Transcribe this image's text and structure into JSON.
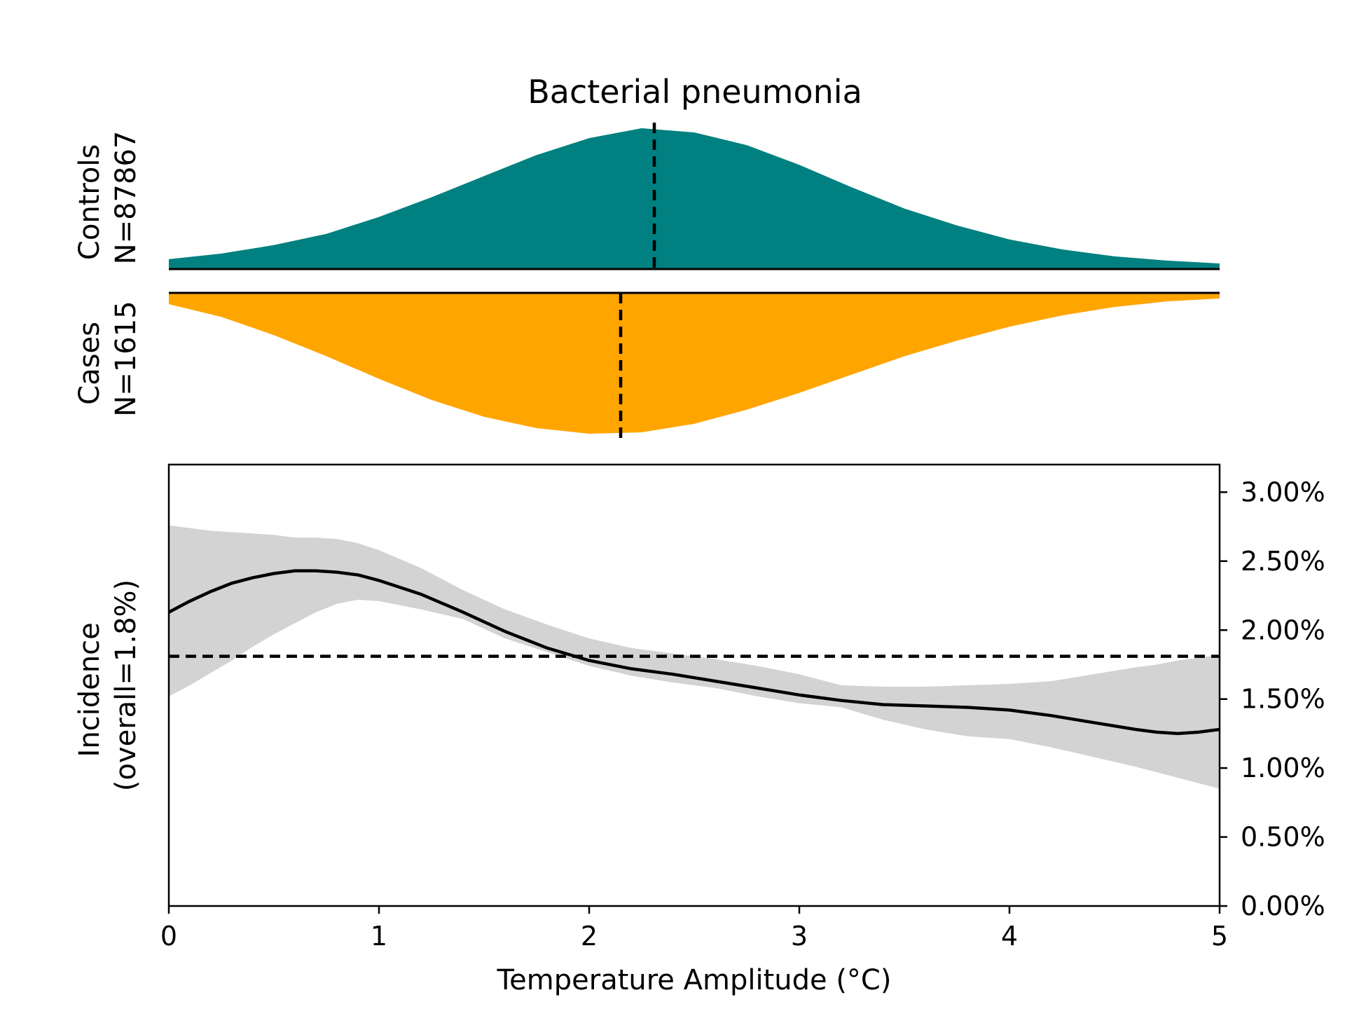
{
  "chart_data": [
    {
      "type": "area",
      "panel": "controls-density",
      "title": "Bacterial pneumonia",
      "ylabel": [
        "Controls",
        "N=87867"
      ],
      "color": "#008080",
      "median": 2.31,
      "x": [
        0,
        0.25,
        0.5,
        0.75,
        1.0,
        1.25,
        1.5,
        1.75,
        2.0,
        2.25,
        2.5,
        2.75,
        3.0,
        3.25,
        3.5,
        3.75,
        4.0,
        4.25,
        4.5,
        4.75,
        5.0
      ],
      "density": [
        0.07,
        0.11,
        0.17,
        0.25,
        0.37,
        0.51,
        0.66,
        0.81,
        0.93,
        1.0,
        0.97,
        0.88,
        0.74,
        0.58,
        0.43,
        0.31,
        0.21,
        0.14,
        0.09,
        0.06,
        0.04
      ]
    },
    {
      "type": "area",
      "panel": "cases-density",
      "ylabel": [
        "Cases",
        "N=1615"
      ],
      "color": "#ffa500",
      "median": 2.15,
      "x": [
        0,
        0.25,
        0.5,
        0.75,
        1.0,
        1.25,
        1.5,
        1.75,
        2.0,
        2.25,
        2.5,
        2.75,
        3.0,
        3.25,
        3.5,
        3.75,
        4.0,
        4.25,
        4.5,
        4.75,
        5.0
      ],
      "density": [
        0.08,
        0.17,
        0.3,
        0.45,
        0.61,
        0.76,
        0.88,
        0.96,
        1.0,
        0.99,
        0.93,
        0.83,
        0.71,
        0.58,
        0.45,
        0.34,
        0.24,
        0.16,
        0.1,
        0.06,
        0.04
      ]
    },
    {
      "type": "line",
      "panel": "incidence",
      "xlabel": "Temperature Amplitude (°C)",
      "ylabel": [
        "Incidence",
        "(overall=1.8%)"
      ],
      "xlim": [
        0,
        5
      ],
      "ylim": [
        0,
        0.032
      ],
      "xticks": [
        "0",
        "1",
        "2",
        "3",
        "4",
        "5"
      ],
      "yticks": [
        "0.00%",
        "0.50%",
        "1.00%",
        "1.50%",
        "2.00%",
        "2.50%",
        "3.00%"
      ],
      "overall": 0.0181,
      "band_color": "#d3d3d3",
      "x": [
        0,
        0.1,
        0.2,
        0.3,
        0.4,
        0.5,
        0.6,
        0.7,
        0.8,
        0.9,
        1.0,
        1.2,
        1.4,
        1.6,
        1.8,
        2.0,
        2.2,
        2.4,
        2.6,
        2.8,
        3.0,
        3.2,
        3.4,
        3.6,
        3.8,
        4.0,
        4.2,
        4.4,
        4.6,
        4.7,
        4.8,
        4.9,
        5.0
      ],
      "series": [
        {
          "role": "estimate",
          "values": [
            0.0213,
            0.0221,
            0.0228,
            0.0234,
            0.0238,
            0.0241,
            0.0243,
            0.0243,
            0.0242,
            0.024,
            0.0236,
            0.0226,
            0.0213,
            0.0199,
            0.0187,
            0.0178,
            0.0172,
            0.0168,
            0.0163,
            0.0158,
            0.0153,
            0.0149,
            0.0146,
            0.0145,
            0.0144,
            0.0142,
            0.0138,
            0.0133,
            0.0128,
            0.0126,
            0.0125,
            0.0126,
            0.0128
          ]
        },
        {
          "role": "upper",
          "values": [
            0.0276,
            0.0274,
            0.0272,
            0.0271,
            0.027,
            0.0269,
            0.0267,
            0.0267,
            0.0266,
            0.0263,
            0.0258,
            0.0245,
            0.0229,
            0.0215,
            0.0204,
            0.0194,
            0.0187,
            0.0183,
            0.0179,
            0.0174,
            0.0168,
            0.016,
            0.0159,
            0.0159,
            0.016,
            0.0161,
            0.0163,
            0.0168,
            0.0173,
            0.0175,
            0.0178,
            0.018,
            0.0182
          ]
        },
        {
          "role": "lower",
          "values": [
            0.0152,
            0.016,
            0.0169,
            0.0178,
            0.0188,
            0.0197,
            0.0205,
            0.0213,
            0.0219,
            0.0222,
            0.0221,
            0.0215,
            0.0208,
            0.0194,
            0.0184,
            0.0174,
            0.0167,
            0.0162,
            0.0158,
            0.0152,
            0.0147,
            0.0144,
            0.0135,
            0.0128,
            0.0123,
            0.0121,
            0.0115,
            0.0108,
            0.0101,
            0.0097,
            0.0093,
            0.0089,
            0.0085
          ]
        }
      ]
    }
  ]
}
